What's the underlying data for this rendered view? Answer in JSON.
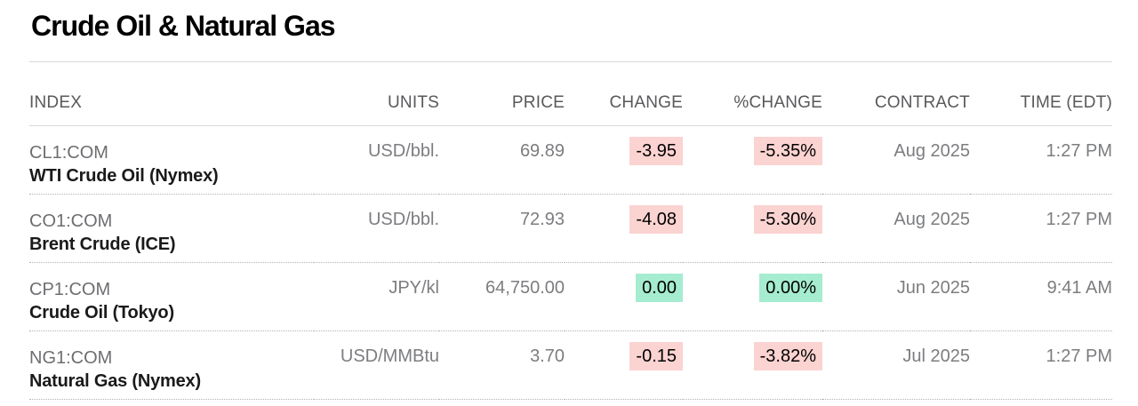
{
  "page": {
    "title": "Crude Oil & Natural Gas"
  },
  "table": {
    "columns": [
      "INDEX",
      "UNITS",
      "PRICE",
      "CHANGE",
      "%CHANGE",
      "CONTRACT",
      "TIME (EDT)"
    ],
    "rows": [
      {
        "ticker": "CL1:COM",
        "name": "WTI Crude Oil (Nymex)",
        "units": "USD/bbl.",
        "price": "69.89",
        "change": "-3.95",
        "pct_change": "-5.35%",
        "direction": "down",
        "contract": "Aug 2025",
        "time": "1:27 PM"
      },
      {
        "ticker": "CO1:COM",
        "name": "Brent Crude (ICE)",
        "units": "USD/bbl.",
        "price": "72.93",
        "change": "-4.08",
        "pct_change": "-5.30%",
        "direction": "down",
        "contract": "Aug 2025",
        "time": "1:27 PM"
      },
      {
        "ticker": "CP1:COM",
        "name": "Crude Oil (Tokyo)",
        "units": "JPY/kl",
        "price": "64,750.00",
        "change": "0.00",
        "pct_change": "0.00%",
        "direction": "flat",
        "contract": "Jun 2025",
        "time": "9:41 AM"
      },
      {
        "ticker": "NG1:COM",
        "name": "Natural Gas (Nymex)",
        "units": "USD/MMBtu",
        "price": "3.70",
        "change": "-0.15",
        "pct_change": "-3.82%",
        "direction": "down",
        "contract": "Jul 2025",
        "time": "1:27 PM"
      }
    ]
  },
  "colors": {
    "negative_bg": "#fbd3d1",
    "unchanged_bg": "#a5ecd0"
  }
}
